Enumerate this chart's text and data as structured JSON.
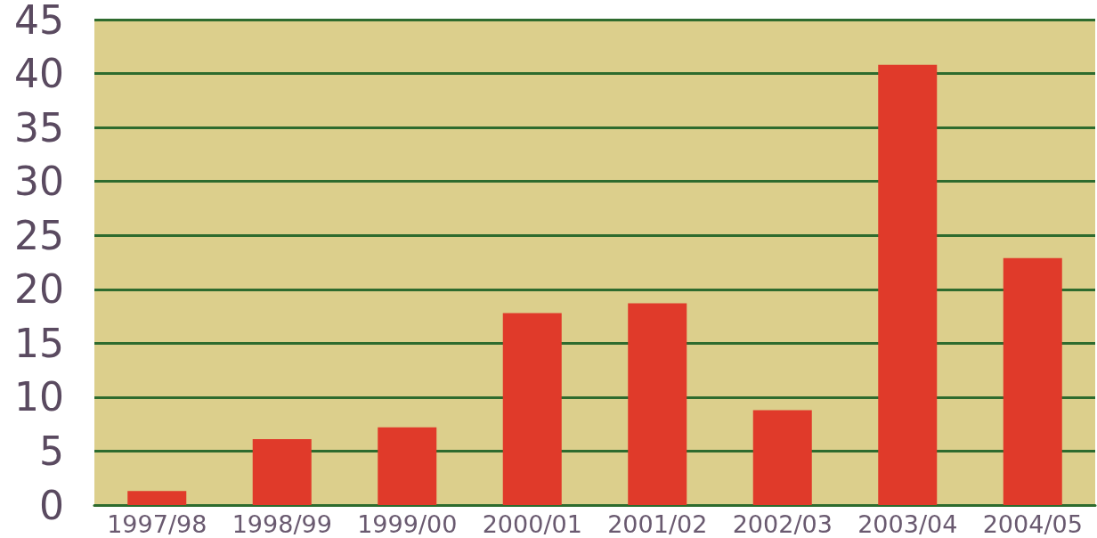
{
  "chart_data": {
    "type": "bar",
    "categories": [
      "1997/98",
      "1998/99",
      "1999/00",
      "2000/01",
      "2001/02",
      "2002/03",
      "2003/04",
      "2004/05"
    ],
    "values": [
      1.3,
      6.1,
      7.2,
      17.8,
      18.7,
      8.8,
      40.8,
      22.9
    ],
    "color": "#e03a2a",
    "ylim": [
      0,
      45
    ],
    "yticks": [
      0,
      5,
      10,
      15,
      20,
      25,
      30,
      35,
      40,
      45
    ],
    "grid": "y"
  }
}
